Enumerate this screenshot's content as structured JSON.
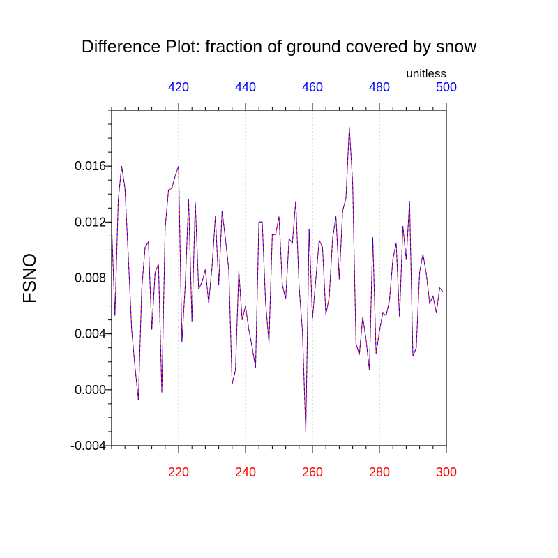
{
  "chart_data": {
    "type": "line",
    "title": "Difference Plot: fraction of ground covered by snow",
    "units": "unitless",
    "ylabel": "FSNO",
    "ylim": [
      -0.004,
      0.02
    ],
    "yticks": [
      -0.004,
      0.0,
      0.004,
      0.008,
      0.012,
      0.016
    ],
    "ytick_labels": [
      "-0.004",
      "0.000",
      "0.004",
      "0.008",
      "0.012",
      "0.016"
    ],
    "bottom_axis": {
      "range": [
        200,
        300
      ],
      "ticks": [
        220,
        240,
        260,
        280,
        300
      ],
      "tick_labels": [
        "220",
        "240",
        "260",
        "280",
        "300"
      ],
      "color": "#ff0000"
    },
    "top_axis": {
      "range": [
        400,
        500
      ],
      "ticks": [
        420,
        440,
        460,
        480,
        500
      ],
      "tick_labels": [
        "420",
        "440",
        "460",
        "480",
        "500"
      ],
      "color": "#0000ff"
    },
    "grid": "vertical-dotted",
    "series": [
      {
        "axis": "bottom",
        "color": "#ff0000",
        "x": [
          200,
          201,
          202,
          203,
          204,
          205,
          206,
          207,
          208,
          209,
          210,
          211,
          212,
          213,
          214,
          215,
          216,
          217,
          218,
          219,
          220,
          221,
          222,
          223,
          224,
          225,
          226,
          227,
          228,
          229,
          230,
          231,
          232,
          233,
          234,
          235,
          236,
          237,
          238,
          239,
          240,
          241,
          242,
          243,
          244,
          245,
          246,
          247,
          248,
          249,
          250,
          251,
          252,
          253,
          254,
          255,
          256,
          257,
          258,
          259,
          260,
          261,
          262,
          263,
          264,
          265,
          266,
          267,
          268,
          269,
          270,
          271,
          272,
          273,
          274,
          275,
          276,
          277,
          278,
          279,
          280,
          281,
          282,
          283,
          284,
          285,
          286,
          287,
          288,
          289,
          290,
          291,
          292,
          293,
          294,
          295,
          296,
          297,
          298,
          299,
          300
        ],
        "values": [
          0.0118,
          0.0053,
          0.0136,
          0.016,
          0.0144,
          0.0095,
          0.0043,
          0.0016,
          -0.0007,
          0.0072,
          0.0102,
          0.0106,
          0.0043,
          0.0084,
          0.009,
          -0.0002,
          0.0116,
          0.0143,
          0.0144,
          0.0153,
          0.016,
          0.0034,
          0.0075,
          0.0136,
          0.0049,
          0.0134,
          0.0072,
          0.0077,
          0.0086,
          0.0062,
          0.0088,
          0.0124,
          0.0075,
          0.0128,
          0.0108,
          0.0086,
          0.0004,
          0.0014,
          0.0085,
          0.005,
          0.006,
          0.0043,
          0.003,
          0.0016,
          0.012,
          0.012,
          0.0062,
          0.0034,
          0.0111,
          0.0111,
          0.0124,
          0.0075,
          0.0065,
          0.0108,
          0.0105,
          0.0135,
          0.0074,
          0.0042,
          -0.003,
          0.0115,
          0.0051,
          0.0079,
          0.0107,
          0.0102,
          0.0054,
          0.0066,
          0.0108,
          0.0124,
          0.0079,
          0.0128,
          0.0137,
          0.0188,
          0.0148,
          0.0033,
          0.0025,
          0.0052,
          0.0036,
          0.0014,
          0.0109,
          0.0026,
          0.0042,
          0.0055,
          0.0053,
          0.0064,
          0.0093,
          0.0105,
          0.0052,
          0.0117,
          0.0093,
          0.0135,
          0.0024,
          0.003,
          0.0084,
          0.0097,
          0.0083,
          0.0062,
          0.0067,
          0.0055,
          0.0073,
          0.007,
          0.007
        ]
      },
      {
        "axis": "top",
        "color": "#0000ff",
        "x": [
          400,
          401,
          402,
          403,
          404,
          405,
          406,
          407,
          408,
          409,
          410,
          411,
          412,
          413,
          414,
          415,
          416,
          417,
          418,
          419,
          420,
          421,
          422,
          423,
          424,
          425,
          426,
          427,
          428,
          429,
          430,
          431,
          432,
          433,
          434,
          435,
          436,
          437,
          438,
          439,
          440,
          441,
          442,
          443,
          444,
          445,
          446,
          447,
          448,
          449,
          450,
          451,
          452,
          453,
          454,
          455,
          456,
          457,
          458,
          459,
          460,
          461,
          462,
          463,
          464,
          465,
          466,
          467,
          468,
          469,
          470,
          471,
          472,
          473,
          474,
          475,
          476,
          477,
          478,
          479,
          480,
          481,
          482,
          483,
          484,
          485,
          486,
          487,
          488,
          489,
          490,
          491,
          492,
          493,
          494,
          495,
          496,
          497,
          498,
          499,
          500
        ],
        "values": [
          0.0118,
          0.0053,
          0.0136,
          0.016,
          0.0144,
          0.0095,
          0.0043,
          0.0016,
          -0.0007,
          0.0072,
          0.0102,
          0.0106,
          0.0043,
          0.0084,
          0.009,
          -0.0002,
          0.0116,
          0.0143,
          0.0144,
          0.0153,
          0.016,
          0.0034,
          0.0075,
          0.0136,
          0.0049,
          0.0134,
          0.0072,
          0.0077,
          0.0086,
          0.0062,
          0.0088,
          0.0124,
          0.0075,
          0.0128,
          0.0108,
          0.0086,
          0.0004,
          0.0014,
          0.0085,
          0.005,
          0.006,
          0.0043,
          0.003,
          0.0016,
          0.012,
          0.012,
          0.0062,
          0.0034,
          0.0111,
          0.0111,
          0.0124,
          0.0075,
          0.0065,
          0.0108,
          0.0105,
          0.0135,
          0.0074,
          0.0042,
          -0.003,
          0.0115,
          0.0051,
          0.0079,
          0.0107,
          0.0102,
          0.0054,
          0.0066,
          0.0108,
          0.0124,
          0.0079,
          0.0128,
          0.0137,
          0.0188,
          0.0148,
          0.0033,
          0.0025,
          0.0052,
          0.0036,
          0.0014,
          0.0109,
          0.0026,
          0.0042,
          0.0055,
          0.0053,
          0.0064,
          0.0093,
          0.0105,
          0.0052,
          0.0117,
          0.0093,
          0.0135,
          0.0024,
          0.003,
          0.0084,
          0.0097,
          0.0083,
          0.0062,
          0.0067,
          0.0055,
          0.0073,
          0.007,
          0.007
        ]
      }
    ]
  }
}
